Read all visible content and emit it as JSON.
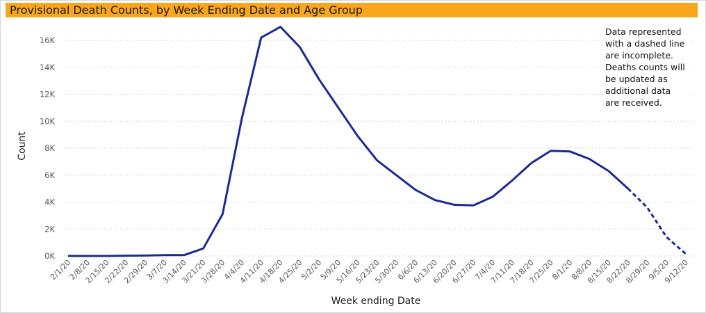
{
  "chart_data": {
    "type": "line",
    "title": "Provisional Death Counts, by Week Ending Date and Age Group",
    "xlabel": "Week ending Date",
    "ylabel": "Count",
    "ylim": [
      0,
      17000
    ],
    "y_ticks": [
      0,
      2000,
      4000,
      6000,
      8000,
      10000,
      12000,
      14000,
      16000
    ],
    "y_tick_labels": [
      "0K",
      "2K",
      "4K",
      "6K",
      "8K",
      "10K",
      "12K",
      "14K",
      "16K"
    ],
    "grid": true,
    "categories": [
      "2/1/20",
      "2/8/20",
      "2/15/20",
      "2/22/20",
      "2/29/20",
      "3/7/20",
      "3/14/20",
      "3/21/20",
      "3/28/20",
      "4/4/20",
      "4/11/20",
      "4/18/20",
      "4/25/20",
      "5/2/20",
      "5/9/20",
      "5/16/20",
      "5/23/20",
      "5/30/20",
      "6/6/20",
      "6/13/20",
      "6/20/20",
      "6/27/20",
      "7/4/20",
      "7/11/20",
      "7/18/20",
      "7/25/20",
      "8/1/20",
      "8/8/20",
      "8/15/20",
      "8/22/20",
      "8/29/20",
      "9/5/20",
      "9/12/20"
    ],
    "series": [
      {
        "values": [
          0,
          0,
          0,
          20,
          30,
          60,
          60,
          550,
          3100,
          10200,
          16200,
          17000,
          15500,
          13100,
          11000,
          8900,
          7100,
          6000,
          4900,
          4150,
          3800,
          3750,
          4400,
          5600,
          6900,
          7800,
          7750,
          7200,
          6300,
          5000,
          3600,
          1400,
          150
        ],
        "color": "#1a2a94",
        "incomplete_from": "8/22/20",
        "incomplete_style": "dashed"
      }
    ],
    "annotation": "Data represented with a dashed line are incomplete. Deaths counts will be updated as additional data are received."
  },
  "note_lines": "Data represented\nwith a dashed line\nare incomplete.\nDeaths counts will\nbe updated as\nadditional data\nare received."
}
